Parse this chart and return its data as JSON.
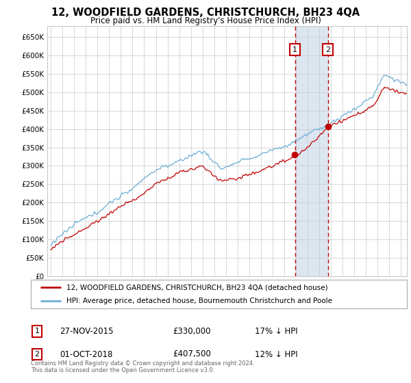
{
  "title": "12, WOODFIELD GARDENS, CHRISTCHURCH, BH23 4QA",
  "subtitle": "Price paid vs. HM Land Registry's House Price Index (HPI)",
  "ylim": [
    0,
    680000
  ],
  "xlim_start": 1994.7,
  "xlim_end": 2025.5,
  "sale1_date": 2015.92,
  "sale2_date": 2018.75,
  "sale1_price": 330000,
  "sale2_price": 407500,
  "legend_line1": "12, WOODFIELD GARDENS, CHRISTCHURCH, BH23 4QA (detached house)",
  "legend_line2": "HPI: Average price, detached house, Bournemouth Christchurch and Poole",
  "hpi_color": "#6baed6",
  "price_color": "#c00000",
  "shade_color": "#dce6f1",
  "grid_color": "#c8c8c8",
  "background_color": "#ffffff"
}
